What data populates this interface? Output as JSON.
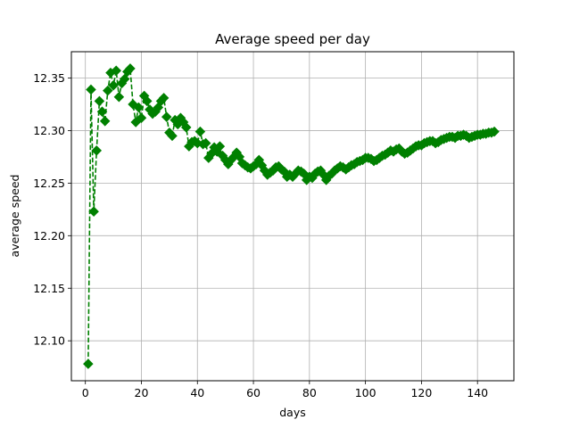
{
  "chart_data": {
    "type": "line",
    "title": "Average speed per day",
    "xlabel": "days",
    "ylabel": "average speed",
    "xlim": [
      -5,
      153
    ],
    "ylim": [
      12.062,
      12.375
    ],
    "xticks": [
      0,
      20,
      40,
      60,
      80,
      100,
      120,
      140
    ],
    "yticks": [
      12.1,
      12.15,
      12.2,
      12.25,
      12.3,
      12.35
    ],
    "ytick_labels": [
      "12.10",
      "12.15",
      "12.20",
      "12.25",
      "12.30",
      "12.35"
    ],
    "grid": true,
    "marker": "diamond",
    "line_style": "dashed",
    "color": "#008000",
    "series": [
      {
        "x": [
          1,
          2,
          3,
          4,
          5,
          6,
          7,
          8,
          9,
          10,
          11,
          12,
          13,
          14,
          15,
          16,
          17,
          18,
          19,
          20,
          21,
          22,
          23,
          24,
          25,
          26,
          27,
          28,
          29,
          30,
          31,
          32,
          33,
          34,
          35,
          36,
          37,
          38,
          39,
          40,
          41,
          42,
          43,
          44,
          45,
          46,
          47,
          48,
          49,
          50,
          51,
          52,
          53,
          54,
          55,
          56,
          57,
          58,
          59,
          60,
          61,
          62,
          63,
          64,
          65,
          66,
          67,
          68,
          69,
          70,
          71,
          72,
          73,
          74,
          75,
          76,
          77,
          78,
          79,
          80,
          81,
          82,
          83,
          84,
          85,
          86,
          87,
          88,
          89,
          90,
          91,
          92,
          93,
          94,
          95,
          96,
          97,
          98,
          99,
          100,
          101,
          102,
          103,
          104,
          105,
          106,
          107,
          108,
          109,
          110,
          111,
          112,
          113,
          114,
          115,
          116,
          117,
          118,
          119,
          120,
          121,
          122,
          123,
          124,
          125,
          126,
          127,
          128,
          129,
          130,
          131,
          132,
          133,
          134,
          135,
          136,
          137,
          138,
          139,
          140,
          141,
          142,
          143,
          144,
          145,
          146
        ],
        "values": [
          12.078,
          12.339,
          12.223,
          12.281,
          12.328,
          12.318,
          12.309,
          12.338,
          12.355,
          12.343,
          12.357,
          12.332,
          12.345,
          12.349,
          12.356,
          12.359,
          12.325,
          12.308,
          12.322,
          12.312,
          12.333,
          12.328,
          12.32,
          12.316,
          12.318,
          12.322,
          12.328,
          12.331,
          12.313,
          12.298,
          12.295,
          12.31,
          12.306,
          12.312,
          12.308,
          12.303,
          12.285,
          12.289,
          12.29,
          12.288,
          12.299,
          12.287,
          12.288,
          12.274,
          12.278,
          12.284,
          12.28,
          12.285,
          12.276,
          12.272,
          12.268,
          12.272,
          12.275,
          12.279,
          12.275,
          12.269,
          12.267,
          12.265,
          12.264,
          12.266,
          12.268,
          12.272,
          12.267,
          12.262,
          12.258,
          12.26,
          12.262,
          12.265,
          12.266,
          12.263,
          12.261,
          12.256,
          12.258,
          12.256,
          12.259,
          12.262,
          12.261,
          12.259,
          12.253,
          12.256,
          12.255,
          12.259,
          12.261,
          12.262,
          12.258,
          12.253,
          12.257,
          12.259,
          12.262,
          12.264,
          12.266,
          12.265,
          12.263,
          12.265,
          12.267,
          12.268,
          12.27,
          12.271,
          12.272,
          12.274,
          12.274,
          12.273,
          12.271,
          12.272,
          12.274,
          12.276,
          12.277,
          12.279,
          12.281,
          12.28,
          12.282,
          12.283,
          12.28,
          12.278,
          12.279,
          12.281,
          12.283,
          12.285,
          12.286,
          12.286,
          12.288,
          12.289,
          12.29,
          12.29,
          12.288,
          12.289,
          12.291,
          12.292,
          12.293,
          12.294,
          12.294,
          12.293,
          12.295,
          12.295,
          12.296,
          12.295,
          12.293,
          12.294,
          12.295,
          12.296,
          12.296,
          12.297,
          12.297,
          12.298,
          12.298,
          12.299
        ]
      }
    ]
  }
}
